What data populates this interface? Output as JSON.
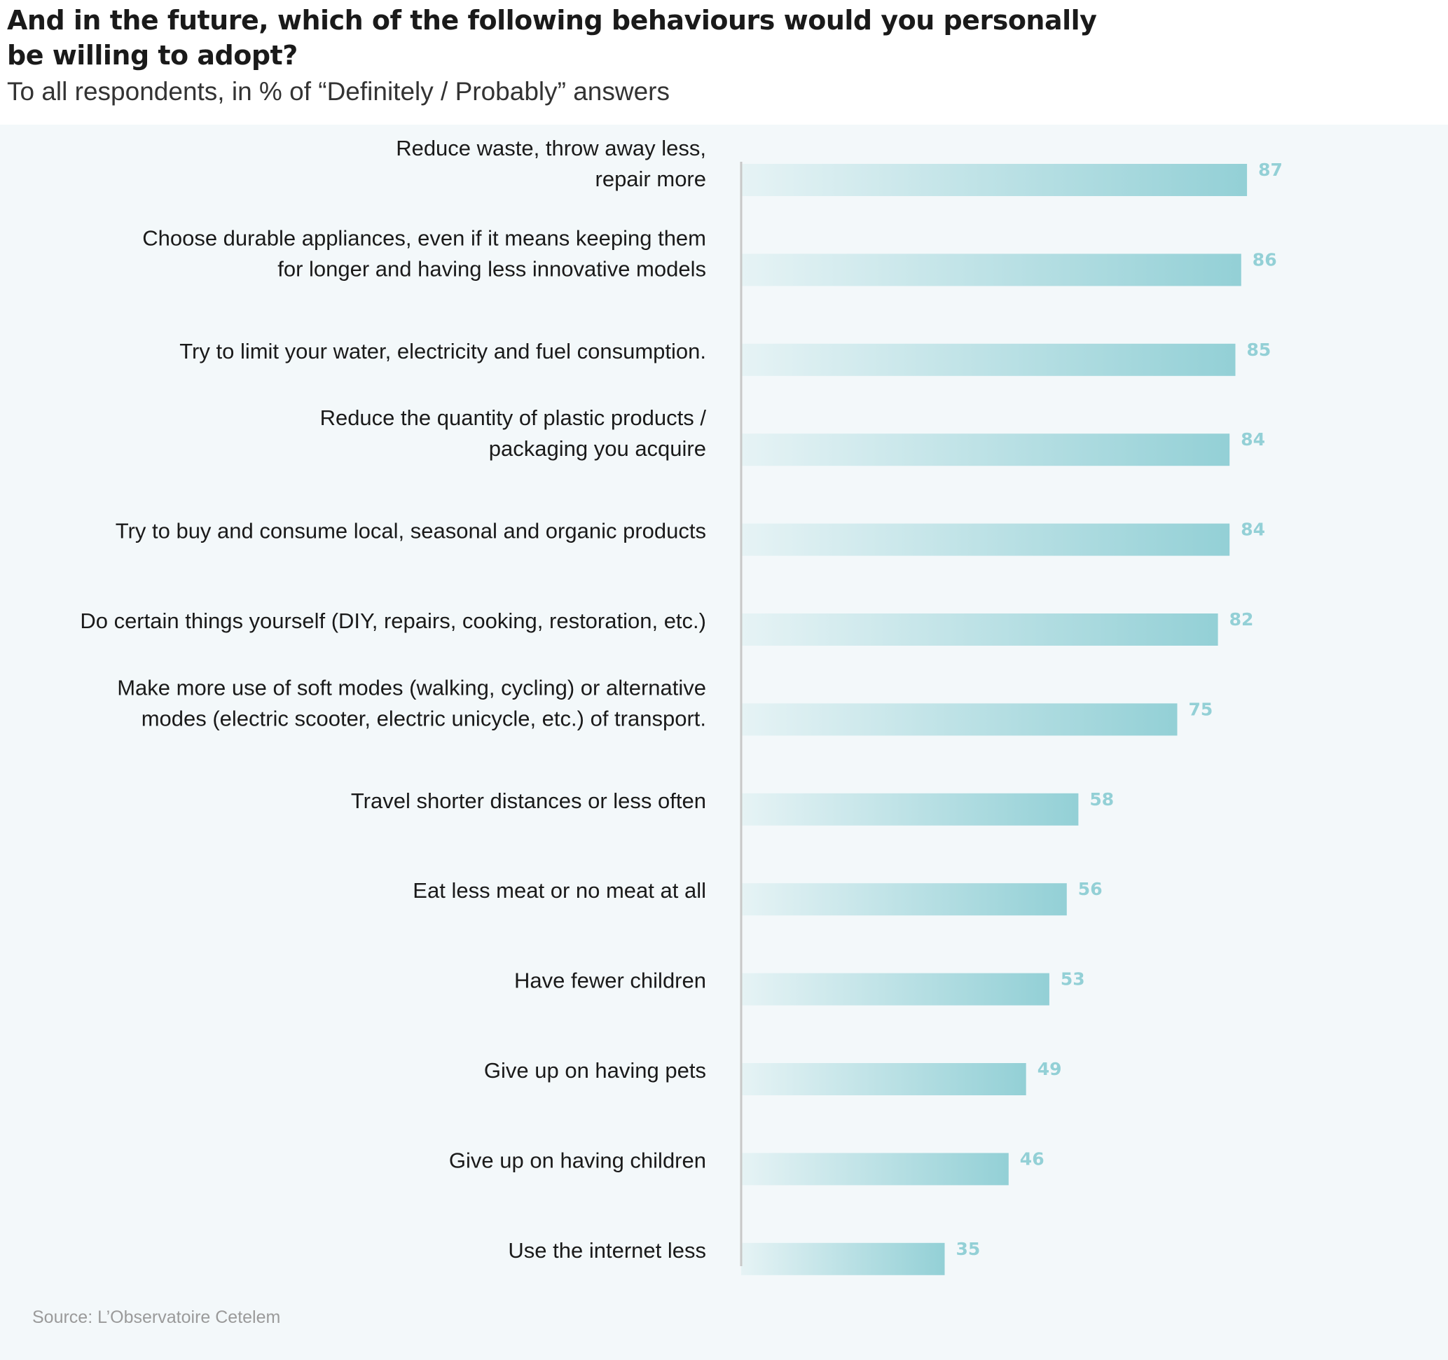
{
  "header": {
    "title_line1": "And in the future, which of the following behaviours would you personally",
    "title_line2": "be willing to adopt?",
    "subtitle": "To all respondents, in % of “Definitely / Probably” answers"
  },
  "source": "Source: L’Observatoire Cetelem",
  "colors": {
    "bar_start": "#e6f3f5",
    "bar_end": "#93d0d6",
    "value_text": "#93d0d6",
    "axis": "#c8c8c8",
    "panel_bg": "#f3f8fa"
  },
  "chart_data": {
    "type": "bar",
    "orientation": "horizontal",
    "title": "And in the future, which of the following behaviours would you personally be willing to adopt?",
    "subtitle": "To all respondents, in % of “Definitely / Probably” answers",
    "xlim": [
      0,
      100
    ],
    "categories": [
      [
        "Reduce waste, throw away less,",
        "repair more"
      ],
      [
        "Choose durable appliances, even if it means keeping them",
        "for longer and having less innovative models"
      ],
      [
        "Try to limit your water, electricity and fuel consumption."
      ],
      [
        "Reduce the quantity of plastic products /",
        "packaging you acquire"
      ],
      [
        "Try to buy and consume local, seasonal and organic products"
      ],
      [
        "Do certain things yourself (DIY, repairs, cooking, restoration, etc.)"
      ],
      [
        "Make more use of soft modes (walking, cycling) or alternative",
        "modes (electric scooter, electric unicycle, etc.) of transport."
      ],
      [
        "Travel shorter distances or less often"
      ],
      [
        "Eat less meat or no meat at all"
      ],
      [
        "Have fewer children"
      ],
      [
        "Give up on having pets"
      ],
      [
        "Give up on having children"
      ],
      [
        "Use the internet less"
      ]
    ],
    "values": [
      87,
      86,
      85,
      84,
      84,
      82,
      75,
      58,
      56,
      53,
      49,
      46,
      35
    ]
  }
}
